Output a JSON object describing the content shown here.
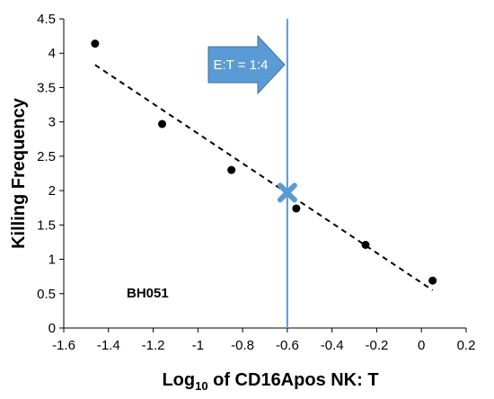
{
  "chart_data": {
    "type": "scatter",
    "xlabel_main": "Log",
    "xlabel_sub": "10",
    "xlabel_rest": " of CD16Apos NK: T",
    "ylabel": "Killing Frequency",
    "xlim": [
      -1.6,
      0.2
    ],
    "ylim": [
      0,
      4.5
    ],
    "xticks": [
      -1.6,
      -1.4,
      -1.2,
      -1,
      -0.8,
      -0.6,
      -0.4,
      -0.2,
      0,
      0.2
    ],
    "yticks": [
      0,
      0.5,
      1,
      1.5,
      2,
      2.5,
      3,
      3.5,
      4,
      4.5
    ],
    "xtick_labels": [
      "-1.6",
      "-1.4",
      "-1.2",
      "-1",
      "-0.8",
      "-0.6",
      "-0.4",
      "-0.2",
      "0",
      "0.2"
    ],
    "ytick_labels": [
      "0",
      "0.5",
      "1",
      "1.5",
      "2",
      "2.5",
      "3",
      "3.5",
      "4",
      "4.5"
    ],
    "points": [
      {
        "x": -1.46,
        "y": 4.14
      },
      {
        "x": -1.16,
        "y": 2.97
      },
      {
        "x": -0.85,
        "y": 2.3
      },
      {
        "x": -0.56,
        "y": 1.74
      },
      {
        "x": -0.25,
        "y": 1.21
      },
      {
        "x": 0.05,
        "y": 0.69
      }
    ],
    "trendline": {
      "x1": -1.46,
      "y1": 3.83,
      "x2": 0.05,
      "y2": 0.55,
      "style": "dashed"
    },
    "marker": {
      "x": -0.6,
      "y": 1.97,
      "shape": "x",
      "color": "#5b9bd5"
    },
    "vline": {
      "x": -0.6,
      "color": "#5b9bd5"
    },
    "annotation": {
      "text": "E:T = 1:4",
      "fill": "#5b9bd5"
    },
    "sample_label": "BH051",
    "grid": false
  }
}
